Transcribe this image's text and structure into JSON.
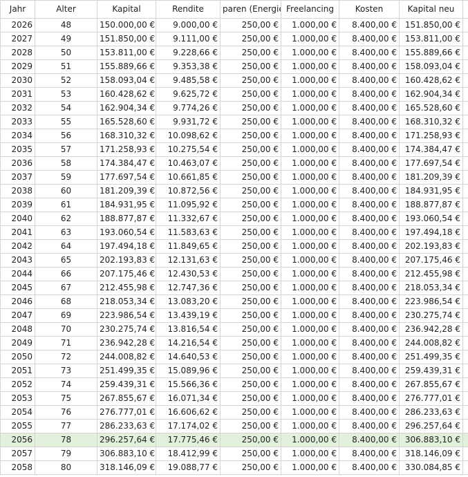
{
  "table": {
    "header": [
      "Jahr",
      "Alter",
      "Kapital",
      "Rendite",
      "paren (Energie",
      "Freelancing",
      "Kosten",
      "Kapital neu"
    ],
    "rows": [
      [
        "2026",
        "48",
        "150.000,00 €",
        "9.000,00 €",
        "250,00 €",
        "1.000,00 €",
        "8.400,00 €",
        "151.850,00 €"
      ],
      [
        "2027",
        "49",
        "151.850,00 €",
        "9.111,00 €",
        "250,00 €",
        "1.000,00 €",
        "8.400,00 €",
        "153.811,00 €"
      ],
      [
        "2028",
        "50",
        "153.811,00 €",
        "9.228,66 €",
        "250,00 €",
        "1.000,00 €",
        "8.400,00 €",
        "155.889,66 €"
      ],
      [
        "2029",
        "51",
        "155.889,66 €",
        "9.353,38 €",
        "250,00 €",
        "1.000,00 €",
        "8.400,00 €",
        "158.093,04 €"
      ],
      [
        "2030",
        "52",
        "158.093,04 €",
        "9.485,58 €",
        "250,00 €",
        "1.000,00 €",
        "8.400,00 €",
        "160.428,62 €"
      ],
      [
        "2031",
        "53",
        "160.428,62 €",
        "9.625,72 €",
        "250,00 €",
        "1.000,00 €",
        "8.400,00 €",
        "162.904,34 €"
      ],
      [
        "2032",
        "54",
        "162.904,34 €",
        "9.774,26 €",
        "250,00 €",
        "1.000,00 €",
        "8.400,00 €",
        "165.528,60 €"
      ],
      [
        "2033",
        "55",
        "165.528,60 €",
        "9.931,72 €",
        "250,00 €",
        "1.000,00 €",
        "8.400,00 €",
        "168.310,32 €"
      ],
      [
        "2034",
        "56",
        "168.310,32 €",
        "10.098,62 €",
        "250,00 €",
        "1.000,00 €",
        "8.400,00 €",
        "171.258,93 €"
      ],
      [
        "2035",
        "57",
        "171.258,93 €",
        "10.275,54 €",
        "250,00 €",
        "1.000,00 €",
        "8.400,00 €",
        "174.384,47 €"
      ],
      [
        "2036",
        "58",
        "174.384,47 €",
        "10.463,07 €",
        "250,00 €",
        "1.000,00 €",
        "8.400,00 €",
        "177.697,54 €"
      ],
      [
        "2037",
        "59",
        "177.697,54 €",
        "10.661,85 €",
        "250,00 €",
        "1.000,00 €",
        "8.400,00 €",
        "181.209,39 €"
      ],
      [
        "2038",
        "60",
        "181.209,39 €",
        "10.872,56 €",
        "250,00 €",
        "1.000,00 €",
        "8.400,00 €",
        "184.931,95 €"
      ],
      [
        "2039",
        "61",
        "184.931,95 €",
        "11.095,92 €",
        "250,00 €",
        "1.000,00 €",
        "8.400,00 €",
        "188.877,87 €"
      ],
      [
        "2040",
        "62",
        "188.877,87 €",
        "11.332,67 €",
        "250,00 €",
        "1.000,00 €",
        "8.400,00 €",
        "193.060,54 €"
      ],
      [
        "2041",
        "63",
        "193.060,54 €",
        "11.583,63 €",
        "250,00 €",
        "1.000,00 €",
        "8.400,00 €",
        "197.494,18 €"
      ],
      [
        "2042",
        "64",
        "197.494,18 €",
        "11.849,65 €",
        "250,00 €",
        "1.000,00 €",
        "8.400,00 €",
        "202.193,83 €"
      ],
      [
        "2043",
        "65",
        "202.193,83 €",
        "12.131,63 €",
        "250,00 €",
        "1.000,00 €",
        "8.400,00 €",
        "207.175,46 €"
      ],
      [
        "2044",
        "66",
        "207.175,46 €",
        "12.430,53 €",
        "250,00 €",
        "1.000,00 €",
        "8.400,00 €",
        "212.455,98 €"
      ],
      [
        "2045",
        "67",
        "212.455,98 €",
        "12.747,36 €",
        "250,00 €",
        "1.000,00 €",
        "8.400,00 €",
        "218.053,34 €"
      ],
      [
        "2046",
        "68",
        "218.053,34 €",
        "13.083,20 €",
        "250,00 €",
        "1.000,00 €",
        "8.400,00 €",
        "223.986,54 €"
      ],
      [
        "2047",
        "69",
        "223.986,54 €",
        "13.439,19 €",
        "250,00 €",
        "1.000,00 €",
        "8.400,00 €",
        "230.275,74 €"
      ],
      [
        "2048",
        "70",
        "230.275,74 €",
        "13.816,54 €",
        "250,00 €",
        "1.000,00 €",
        "8.400,00 €",
        "236.942,28 €"
      ],
      [
        "2049",
        "71",
        "236.942,28 €",
        "14.216,54 €",
        "250,00 €",
        "1.000,00 €",
        "8.400,00 €",
        "244.008,82 €"
      ],
      [
        "2050",
        "72",
        "244.008,82 €",
        "14.640,53 €",
        "250,00 €",
        "1.000,00 €",
        "8.400,00 €",
        "251.499,35 €"
      ],
      [
        "2051",
        "73",
        "251.499,35 €",
        "15.089,96 €",
        "250,00 €",
        "1.000,00 €",
        "8.400,00 €",
        "259.439,31 €"
      ],
      [
        "2052",
        "74",
        "259.439,31 €",
        "15.566,36 €",
        "250,00 €",
        "1.000,00 €",
        "8.400,00 €",
        "267.855,67 €"
      ],
      [
        "2053",
        "75",
        "267.855,67 €",
        "16.071,34 €",
        "250,00 €",
        "1.000,00 €",
        "8.400,00 €",
        "276.777,01 €"
      ],
      [
        "2054",
        "76",
        "276.777,01 €",
        "16.606,62 €",
        "250,00 €",
        "1.000,00 €",
        "8.400,00 €",
        "286.233,63 €"
      ],
      [
        "2055",
        "77",
        "286.233,63 €",
        "17.174,02 €",
        "250,00 €",
        "1.000,00 €",
        "8.400,00 €",
        "296.257,64 €"
      ],
      [
        "2056",
        "78",
        "296.257,64 €",
        "17.775,46 €",
        "250,00 €",
        "1.000,00 €",
        "8.400,00 €",
        "306.883,10 €"
      ],
      [
        "2057",
        "79",
        "306.883,10 €",
        "18.412,99 €",
        "250,00 €",
        "1.000,00 €",
        "8.400,00 €",
        "318.146,09 €"
      ],
      [
        "2058",
        "80",
        "318.146,09 €",
        "19.088,77 €",
        "250,00 €",
        "1.000,00 €",
        "8.400,00 €",
        "330.084,85 €"
      ]
    ]
  }
}
